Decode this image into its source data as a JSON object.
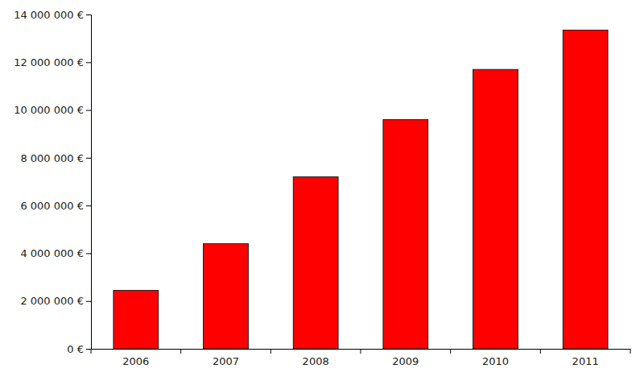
{
  "chart_data": {
    "type": "bar",
    "categories": [
      "2006",
      "2007",
      "2008",
      "2009",
      "2010",
      "2011"
    ],
    "values": [
      2450000,
      4400000,
      7200000,
      9600000,
      11700000,
      13350000
    ],
    "color": "#ff0000",
    "ylim": [
      0,
      14000000
    ],
    "yticks": [
      {
        "value": 0,
        "label": "0 €"
      },
      {
        "value": 2000000,
        "label": "2 000 000 €"
      },
      {
        "value": 4000000,
        "label": "4 000 000 €"
      },
      {
        "value": 6000000,
        "label": "6 000 000 €"
      },
      {
        "value": 8000000,
        "label": "8 000 000 €"
      },
      {
        "value": 10000000,
        "label": "10 000 000 €"
      },
      {
        "value": 12000000,
        "label": "12 000 000 €"
      },
      {
        "value": 14000000,
        "label": "14 000 000 €"
      }
    ],
    "grid": false
  }
}
